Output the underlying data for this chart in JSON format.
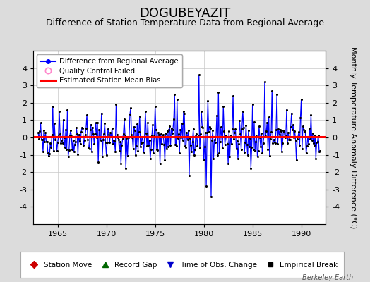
{
  "title": "DOGUBEYAZIT",
  "subtitle": "Difference of Station Temperature Data from Regional Average",
  "ylabel": "Monthly Temperature Anomaly Difference (°C)",
  "xlim": [
    1962.5,
    1992.5
  ],
  "ylim": [
    -5,
    5
  ],
  "xticks": [
    1965,
    1970,
    1975,
    1980,
    1985,
    1990
  ],
  "yticks": [
    -4,
    -3,
    -2,
    -1,
    0,
    1,
    2,
    3,
    4
  ],
  "bias_value": 0.05,
  "line_color": "#0000FF",
  "bias_color": "#FF0000",
  "marker_color": "#000000",
  "bg_color": "#DCDCDC",
  "plot_bg_color": "#FFFFFF",
  "watermark": "Berkeley Earth",
  "legend1_items": [
    {
      "label": "Difference from Regional Average"
    },
    {
      "label": "Quality Control Failed"
    },
    {
      "label": "Estimated Station Mean Bias"
    }
  ],
  "legend2_items": [
    {
      "label": "Station Move",
      "color": "#CC0000",
      "marker": "D"
    },
    {
      "label": "Record Gap",
      "color": "#006600",
      "marker": "^"
    },
    {
      "label": "Time of Obs. Change",
      "color": "#0000CC",
      "marker": "v"
    },
    {
      "label": "Empirical Break",
      "color": "#000000",
      "marker": "s"
    }
  ],
  "title_fontsize": 13,
  "subtitle_fontsize": 9,
  "axis_fontsize": 8,
  "tick_fontsize": 8
}
